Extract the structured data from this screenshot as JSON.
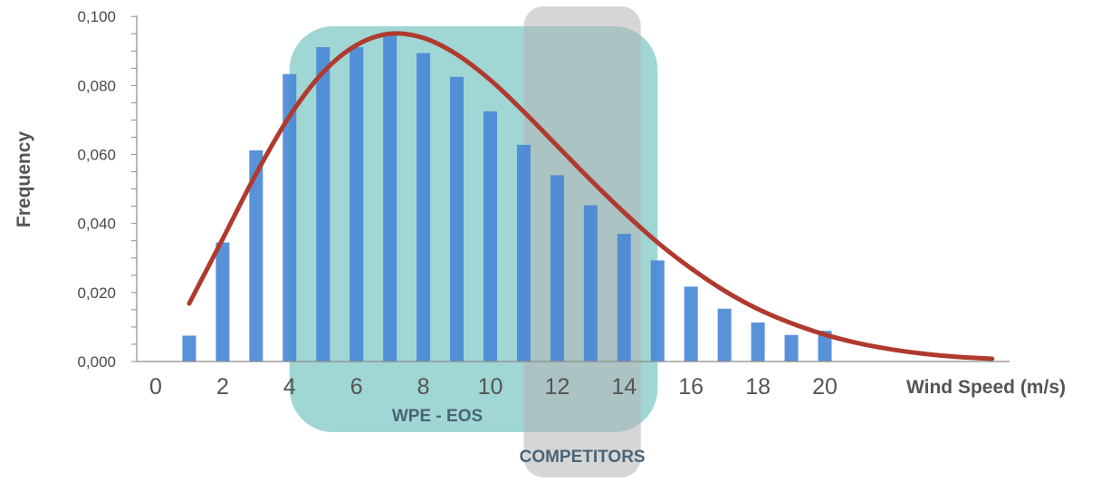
{
  "chart_data": {
    "type": "bar",
    "xlabel": "Wind Speed (m/s)",
    "ylabel": "Frequency",
    "x_ticks": [
      "0",
      "2",
      "4",
      "6",
      "8",
      "10",
      "12",
      "14",
      "16",
      "18",
      "20"
    ],
    "y_ticks": [
      "0,000",
      "0,020",
      "0,040",
      "0,060",
      "0,080",
      "0,100"
    ],
    "ylim": [
      0,
      0.1
    ],
    "xlim": [
      -0.1,
      25.5
    ],
    "series": [
      {
        "kind": "bar",
        "x": [
          1,
          2,
          3,
          4,
          5,
          6,
          7,
          8,
          9,
          10,
          11,
          12,
          13,
          14,
          15,
          16,
          17,
          18,
          19,
          20
        ],
        "values": [
          0.0075,
          0.0345,
          0.0612,
          0.0833,
          0.0911,
          0.0911,
          0.095,
          0.0894,
          0.0825,
          0.0725,
          0.0628,
          0.054,
          0.0453,
          0.037,
          0.0293,
          0.0217,
          0.0153,
          0.0113,
          0.0077,
          0.0089
        ],
        "color": "#4a89d6"
      },
      {
        "kind": "line",
        "x": [
          1,
          2,
          3,
          4,
          5,
          6,
          7,
          8,
          9,
          10,
          11,
          12,
          13,
          14,
          15,
          16,
          17,
          18,
          19,
          20,
          21,
          22,
          23,
          24,
          25
        ],
        "values": [
          0.0168,
          0.0355,
          0.0544,
          0.0711,
          0.0838,
          0.0917,
          0.095,
          0.0938,
          0.089,
          0.0816,
          0.0724,
          0.0625,
          0.0526,
          0.0432,
          0.0345,
          0.027,
          0.0205,
          0.0152,
          0.0111,
          0.0078,
          0.0053,
          0.0035,
          0.0022,
          0.0013,
          0.0008
        ],
        "color": "#b03a2e"
      }
    ],
    "regions": [
      {
        "label": "WPE - EOS",
        "x_range": [
          4,
          15
        ],
        "color": "#7cc6c4"
      },
      {
        "label": "COMPETITORS",
        "x_range": [
          11,
          14.5
        ],
        "color": "#b5b5b5"
      }
    ],
    "grid": false,
    "legend": "none"
  }
}
